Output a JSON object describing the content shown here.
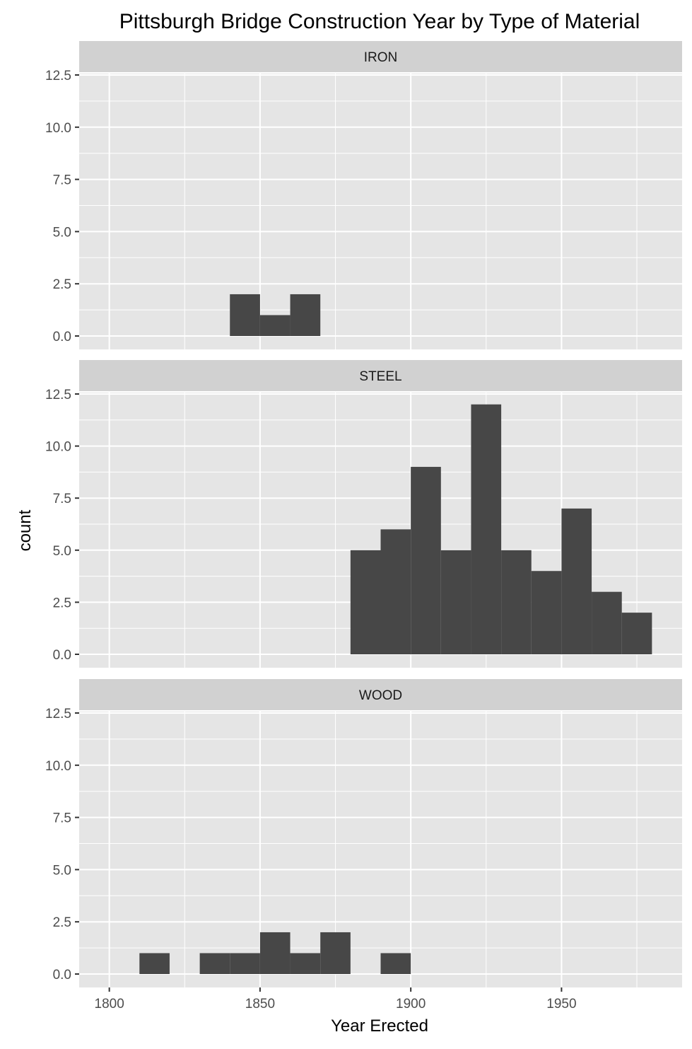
{
  "chart_data": {
    "type": "bar",
    "title": "Pittsburgh Bridge Construction Year by Type of Material",
    "xlabel": "Year Erected",
    "ylabel": "count",
    "xlim": [
      1790,
      1990
    ],
    "ylim": [
      0,
      12.5
    ],
    "x_ticks": [
      1800,
      1850,
      1900,
      1950
    ],
    "y_ticks": [
      0.0,
      2.5,
      5.0,
      7.5,
      10.0,
      12.5
    ],
    "y_tick_labels": [
      "0.0",
      "2.5",
      "5.0",
      "7.5",
      "10.0",
      "12.5"
    ],
    "bin_width": 10,
    "grid": true,
    "facets": [
      {
        "name": "IRON",
        "bins": [
          {
            "start": 1840,
            "end": 1850,
            "count": 2
          },
          {
            "start": 1850,
            "end": 1860,
            "count": 1
          },
          {
            "start": 1860,
            "end": 1870,
            "count": 2
          }
        ]
      },
      {
        "name": "STEEL",
        "bins": [
          {
            "start": 1880,
            "end": 1890,
            "count": 5
          },
          {
            "start": 1890,
            "end": 1900,
            "count": 6
          },
          {
            "start": 1900,
            "end": 1910,
            "count": 9
          },
          {
            "start": 1910,
            "end": 1920,
            "count": 5
          },
          {
            "start": 1920,
            "end": 1930,
            "count": 12
          },
          {
            "start": 1930,
            "end": 1940,
            "count": 5
          },
          {
            "start": 1940,
            "end": 1950,
            "count": 4
          },
          {
            "start": 1950,
            "end": 1960,
            "count": 7
          },
          {
            "start": 1960,
            "end": 1970,
            "count": 3
          },
          {
            "start": 1970,
            "end": 1980,
            "count": 2
          }
        ]
      },
      {
        "name": "WOOD",
        "bins": [
          {
            "start": 1810,
            "end": 1820,
            "count": 1
          },
          {
            "start": 1830,
            "end": 1840,
            "count": 1
          },
          {
            "start": 1840,
            "end": 1850,
            "count": 1
          },
          {
            "start": 1850,
            "end": 1860,
            "count": 2
          },
          {
            "start": 1860,
            "end": 1870,
            "count": 1
          },
          {
            "start": 1870,
            "end": 1880,
            "count": 2
          },
          {
            "start": 1890,
            "end": 1900,
            "count": 1
          }
        ]
      }
    ],
    "colors": {
      "bar": "#474747",
      "panel": "#e5e5e5",
      "strip": "#d1d1d1",
      "grid": "#ffffff",
      "text": "#000000",
      "tick_text": "#4d4d4d",
      "tick_mark": "#333333"
    }
  }
}
